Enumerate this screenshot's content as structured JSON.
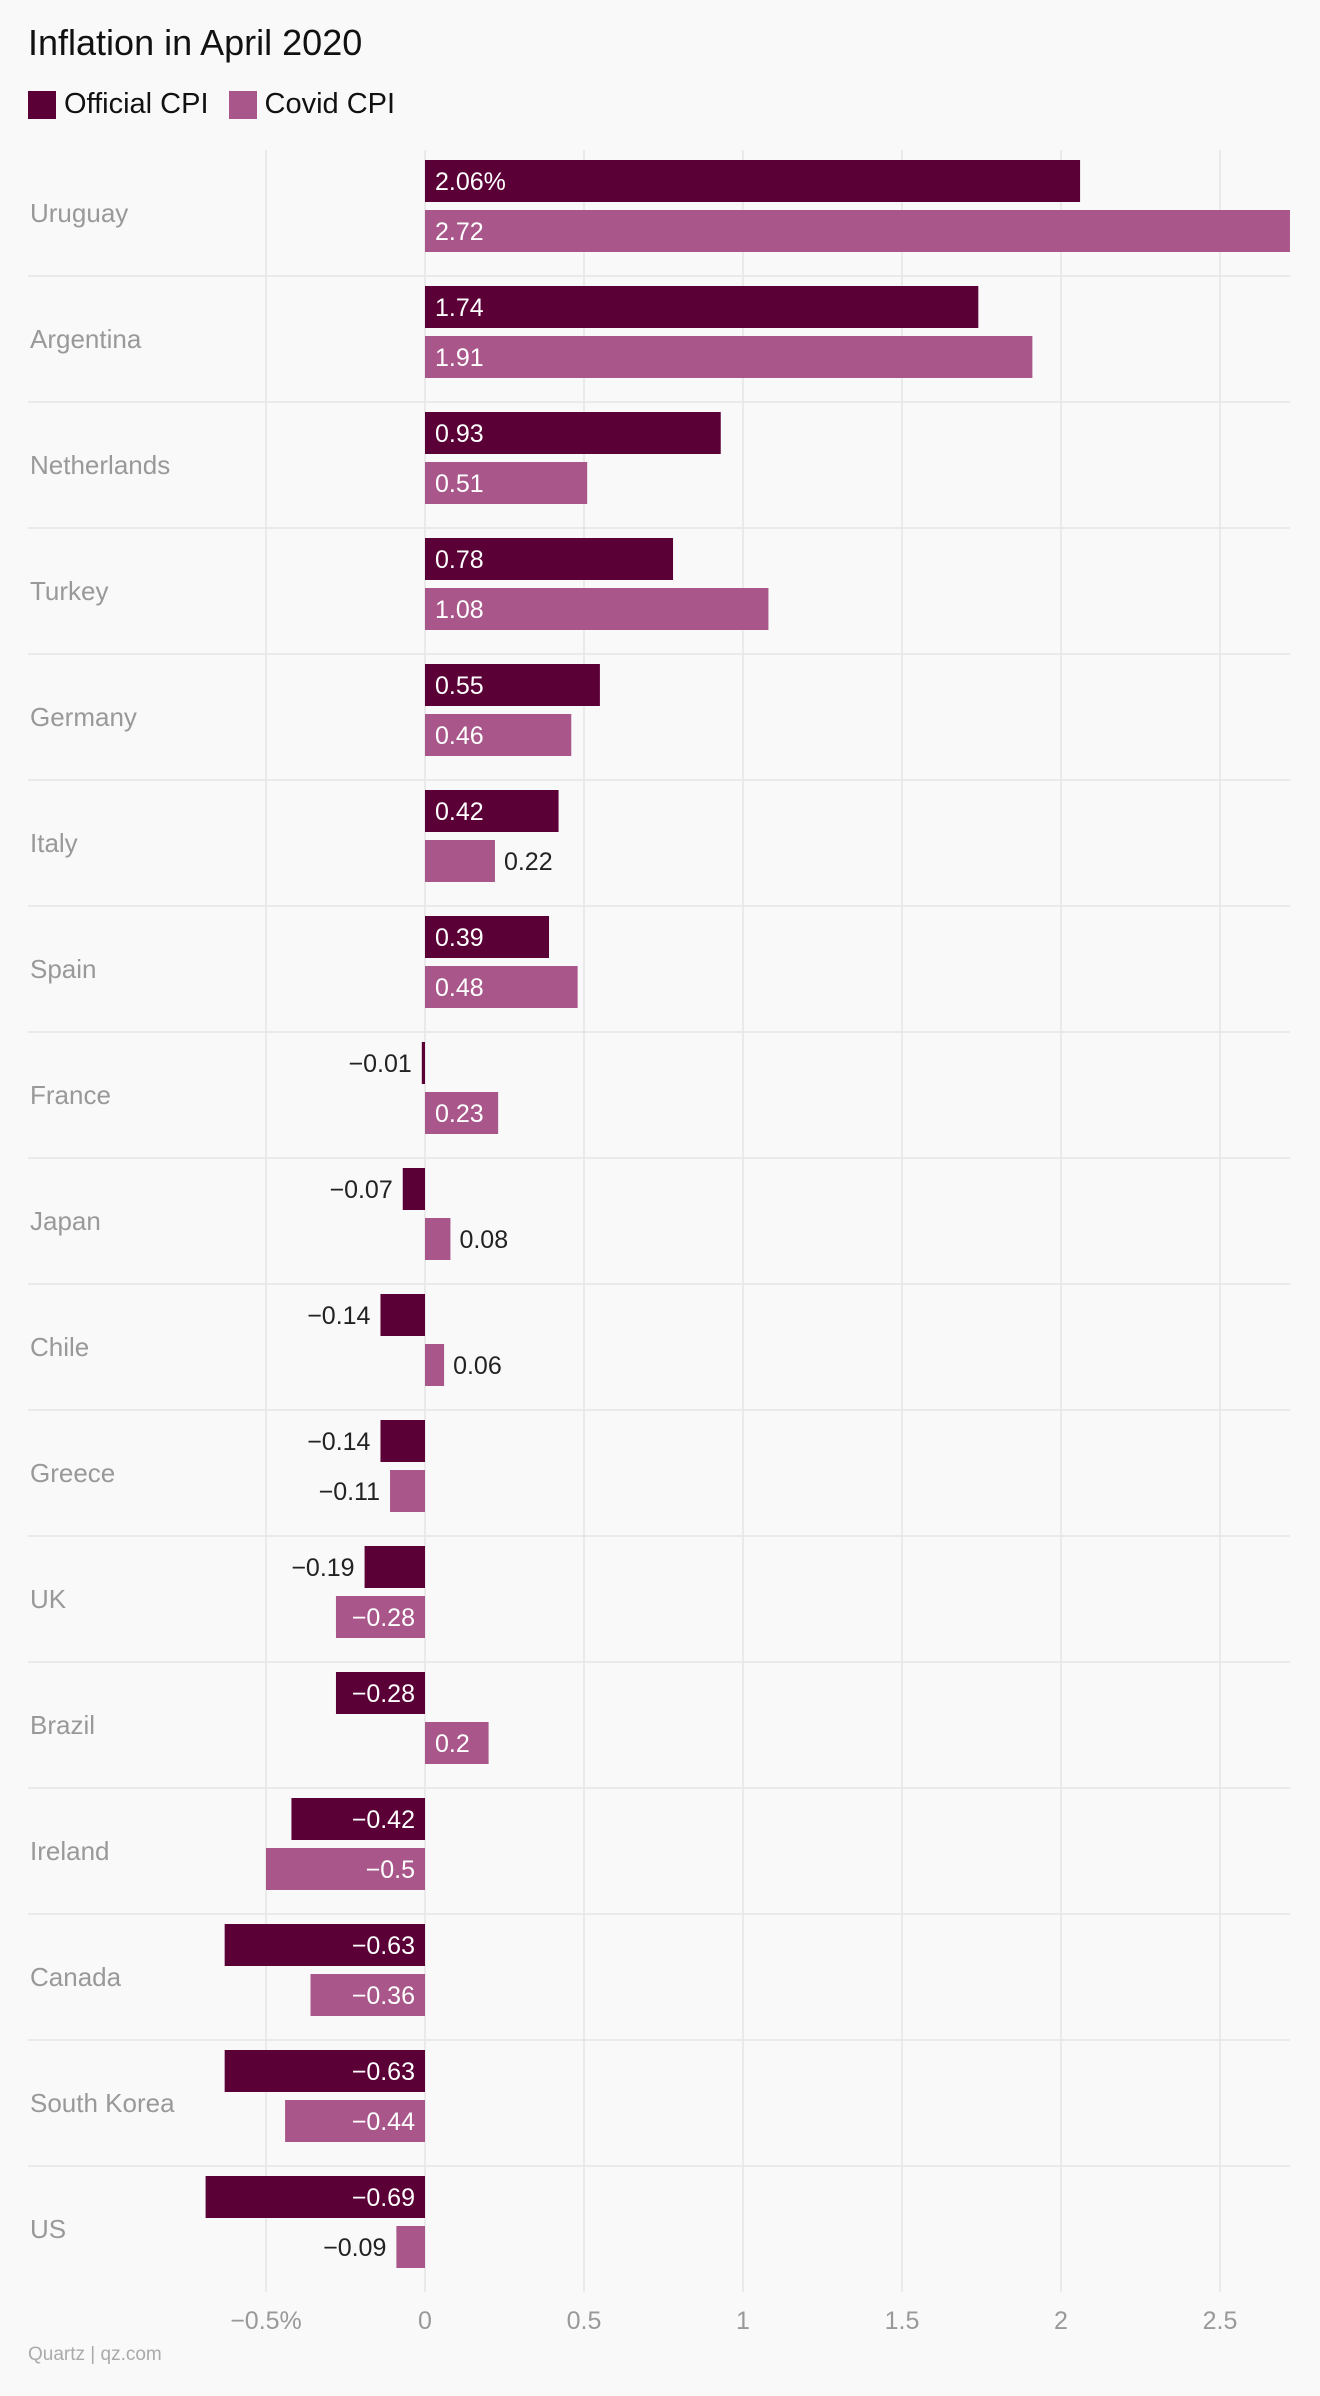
{
  "chart_data": {
    "type": "bar",
    "orientation": "horizontal",
    "title": "Inflation in April 2020",
    "categories": [
      "Uruguay",
      "Argentina",
      "Netherlands",
      "Turkey",
      "Germany",
      "Italy",
      "Spain",
      "France",
      "Japan",
      "Chile",
      "Greece",
      "UK",
      "Brazil",
      "Ireland",
      "Canada",
      "South Korea",
      "US"
    ],
    "series": [
      {
        "name": "Official CPI",
        "color": "#5a0037",
        "values": [
          2.06,
          1.74,
          0.93,
          0.78,
          0.55,
          0.42,
          0.39,
          -0.01,
          -0.07,
          -0.14,
          -0.14,
          -0.19,
          -0.28,
          -0.42,
          -0.63,
          -0.63,
          -0.69
        ],
        "labels": [
          "2.06%",
          "1.74",
          "0.93",
          "0.78",
          "0.55",
          "0.42",
          "0.39",
          "−0.01",
          "−0.07",
          "−0.14",
          "−0.14",
          "−0.19",
          "−0.28",
          "−0.42",
          "−0.63",
          "−0.63",
          "−0.69"
        ]
      },
      {
        "name": "Covid CPI",
        "color": "#a9578a",
        "values": [
          2.72,
          1.91,
          0.51,
          1.08,
          0.46,
          0.22,
          0.48,
          0.23,
          0.08,
          0.06,
          -0.11,
          -0.28,
          0.2,
          -0.5,
          -0.36,
          -0.44,
          -0.09
        ],
        "labels": [
          "2.72",
          "1.91",
          "0.51",
          "1.08",
          "0.46",
          "0.22",
          "0.48",
          "0.23",
          "0.08",
          "0.06",
          "−0.11",
          "−0.28",
          "0.2",
          "−0.5",
          "−0.36",
          "−0.44",
          "−0.09"
        ]
      }
    ],
    "x_ticks": [
      {
        "value": -0.5,
        "label": "−0.5%"
      },
      {
        "value": 0,
        "label": "0"
      },
      {
        "value": 0.5,
        "label": "0.5"
      },
      {
        "value": 1,
        "label": "1"
      },
      {
        "value": 1.5,
        "label": "1.5"
      },
      {
        "value": 2,
        "label": "2"
      },
      {
        "value": 2.5,
        "label": "2.5"
      }
    ],
    "xlim": [
      -0.75,
      2.72
    ],
    "grid": true,
    "legend_position": "top-left"
  },
  "source": "Quartz | qz.com",
  "colors": {
    "background": "#f9f9f9",
    "grid": "#e6e6e6",
    "category_label": "#999999",
    "tick_label": "#999999",
    "label_inside": "#ffffff",
    "label_outside": "#222222"
  }
}
